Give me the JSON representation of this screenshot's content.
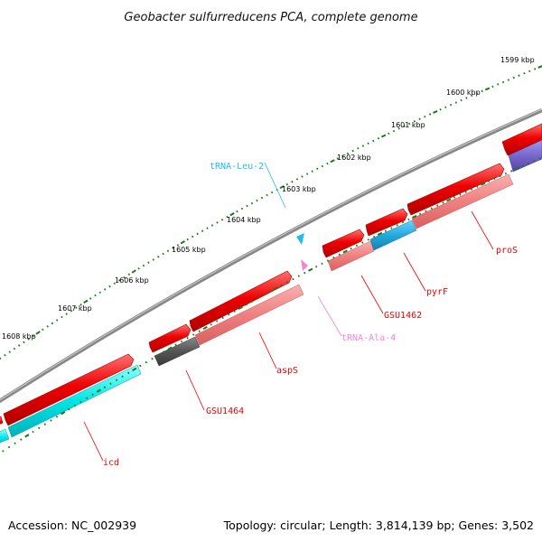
{
  "title": "Geobacter sulfurreducens PCA, complete genome",
  "tick_labels": [
    "1599 kbp",
    "1600 kbp",
    "1601 kbp",
    "1602 kbp",
    "1603 kbp",
    "1604 kbp",
    "1605 kbp",
    "1606 kbp",
    "1607 kbp",
    "1608 kbp"
  ],
  "features": [
    {
      "name": "proS",
      "color": "#ee0000"
    },
    {
      "name": "pyrF",
      "color": "#ee0000"
    },
    {
      "name": "GSU1462",
      "color": "#ee0000"
    },
    {
      "name": "tRNA-Leu-2",
      "color": "#22bbee"
    },
    {
      "name": "tRNA-Ala-4",
      "color": "#ee88cc"
    },
    {
      "name": "aspS",
      "color": "#ee0000"
    },
    {
      "name": "GSU1464",
      "color": "#ee0000"
    },
    {
      "name": "icd",
      "color": "#ee0000"
    }
  ],
  "track_colors": {
    "backbone": "#888888",
    "forward_cds": "#ee0000",
    "cds_annotation": "#f08080",
    "cyan": "#00e5e5",
    "blue": "#22aadd",
    "purple": "#7766cc",
    "dark_gray": "#555555",
    "ticks": "#1a7a1a"
  },
  "footer": {
    "accession": "Accession: NC_002939",
    "topology": "Topology: circular; Length: 3,814,139 bp; Genes: 3,502"
  }
}
